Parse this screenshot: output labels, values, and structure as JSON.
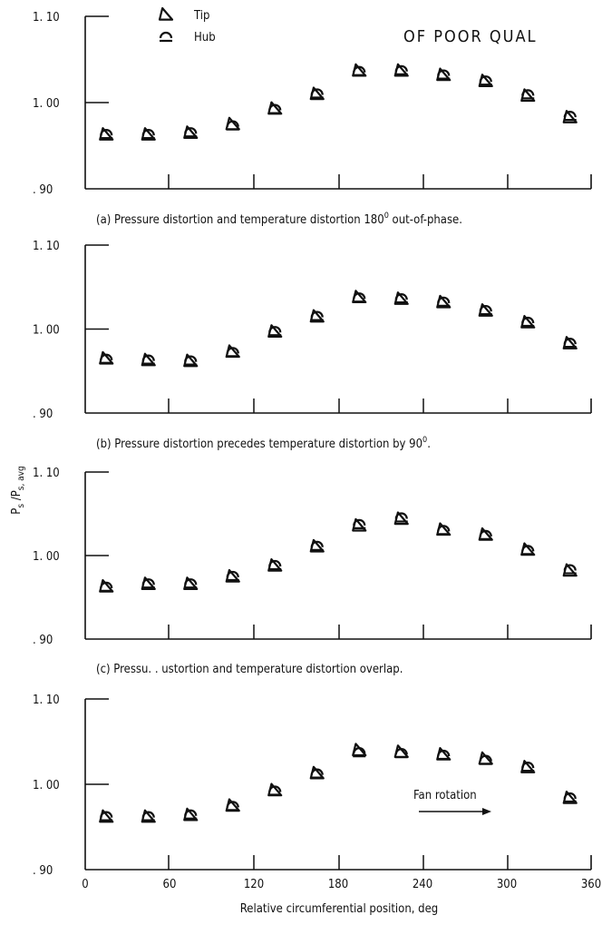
{
  "header_stamp": "OF POOR QUAL",
  "legend": [
    {
      "label": "Tip",
      "marker": "triangle"
    },
    {
      "label": "Hub",
      "marker": "semicircle"
    }
  ],
  "ylabel": "Ps/Ps,avg",
  "ylabel_parts": {
    "main": "P",
    "sub": "s",
    "mid": " /P",
    "sub2": "s, avg"
  },
  "xlabel": "Relative circumferential position, deg",
  "annotation": {
    "text": "Fan rotation",
    "arrow": "right"
  },
  "chart_data": [
    {
      "panel": "a",
      "type": "scatter",
      "caption": "(a) Pressure distortion and temperature distortion 180",
      "caption_sup": "0",
      "caption_end": " out-of-phase.",
      "ylim": [
        0.9,
        1.1
      ],
      "yticks": [
        "1. 10",
        "1. 00",
        ". 90"
      ],
      "x": [
        15,
        45,
        75,
        105,
        135,
        165,
        195,
        225,
        255,
        285,
        315,
        345
      ],
      "series": [
        {
          "name": "Tip",
          "values": [
            0.963,
            0.963,
            0.965,
            0.975,
            0.993,
            1.01,
            1.037,
            1.037,
            1.032,
            1.025,
            1.008,
            0.983
          ]
        },
        {
          "name": "Hub",
          "values": [
            0.962,
            0.962,
            0.964,
            0.972,
            0.991,
            1.009,
            1.035,
            1.036,
            1.031,
            1.024,
            1.008,
            0.983
          ]
        }
      ]
    },
    {
      "panel": "b",
      "type": "scatter",
      "caption": "(b) Pressure distortion precedes temperature distortion by 90",
      "caption_sup": "0",
      "caption_end": ".",
      "ylim": [
        0.9,
        1.1
      ],
      "yticks": [
        "1. 10",
        "1. 00",
        ". 90"
      ],
      "x": [
        15,
        45,
        75,
        105,
        135,
        165,
        195,
        225,
        255,
        285,
        315,
        345
      ],
      "series": [
        {
          "name": "Tip",
          "values": [
            0.965,
            0.963,
            0.962,
            0.973,
            0.997,
            1.015,
            1.038,
            1.036,
            1.032,
            1.022,
            1.008,
            0.983
          ]
        },
        {
          "name": "Hub",
          "values": [
            0.963,
            0.962,
            0.961,
            0.971,
            0.996,
            1.014,
            1.036,
            1.035,
            1.031,
            1.021,
            1.007,
            0.982
          ]
        }
      ]
    },
    {
      "panel": "c",
      "type": "scatter",
      "caption": "(c) Pressu. . ustortion and temperature distortion overlap.",
      "caption_sup": "",
      "caption_end": "",
      "ylim": [
        0.9,
        1.1
      ],
      "yticks": [
        "1. 10",
        "1. 00",
        ". 90"
      ],
      "x": [
        15,
        45,
        75,
        105,
        135,
        165,
        195,
        225,
        255,
        285,
        315,
        345
      ],
      "series": [
        {
          "name": "Tip",
          "values": [
            0.963,
            0.966,
            0.966,
            0.975,
            0.988,
            1.011,
            1.036,
            1.044,
            1.031,
            1.025,
            1.007,
            0.982
          ]
        },
        {
          "name": "Hub",
          "values": [
            0.961,
            0.965,
            0.965,
            0.974,
            0.987,
            1.01,
            1.036,
            1.044,
            1.029,
            1.023,
            1.005,
            0.982
          ]
        }
      ]
    },
    {
      "panel": "d",
      "type": "scatter",
      "caption": "",
      "ylim": [
        0.9,
        1.1
      ],
      "yticks": [
        "1. 10",
        "1. 00",
        ". 90"
      ],
      "xticks": [
        "0",
        "60",
        "120",
        "180",
        "240",
        "300",
        "360"
      ],
      "xlim": [
        0,
        360
      ],
      "x": [
        15,
        45,
        75,
        105,
        135,
        165,
        195,
        225,
        255,
        285,
        315,
        345
      ],
      "series": [
        {
          "name": "Tip",
          "values": [
            0.962,
            0.962,
            0.964,
            0.975,
            0.993,
            1.013,
            1.04,
            1.038,
            1.035,
            1.03,
            1.02,
            0.984
          ]
        },
        {
          "name": "Hub",
          "values": [
            0.961,
            0.961,
            0.963,
            0.973,
            0.991,
            1.011,
            1.036,
            1.035,
            1.033,
            1.027,
            1.019,
            0.983
          ]
        }
      ]
    }
  ]
}
